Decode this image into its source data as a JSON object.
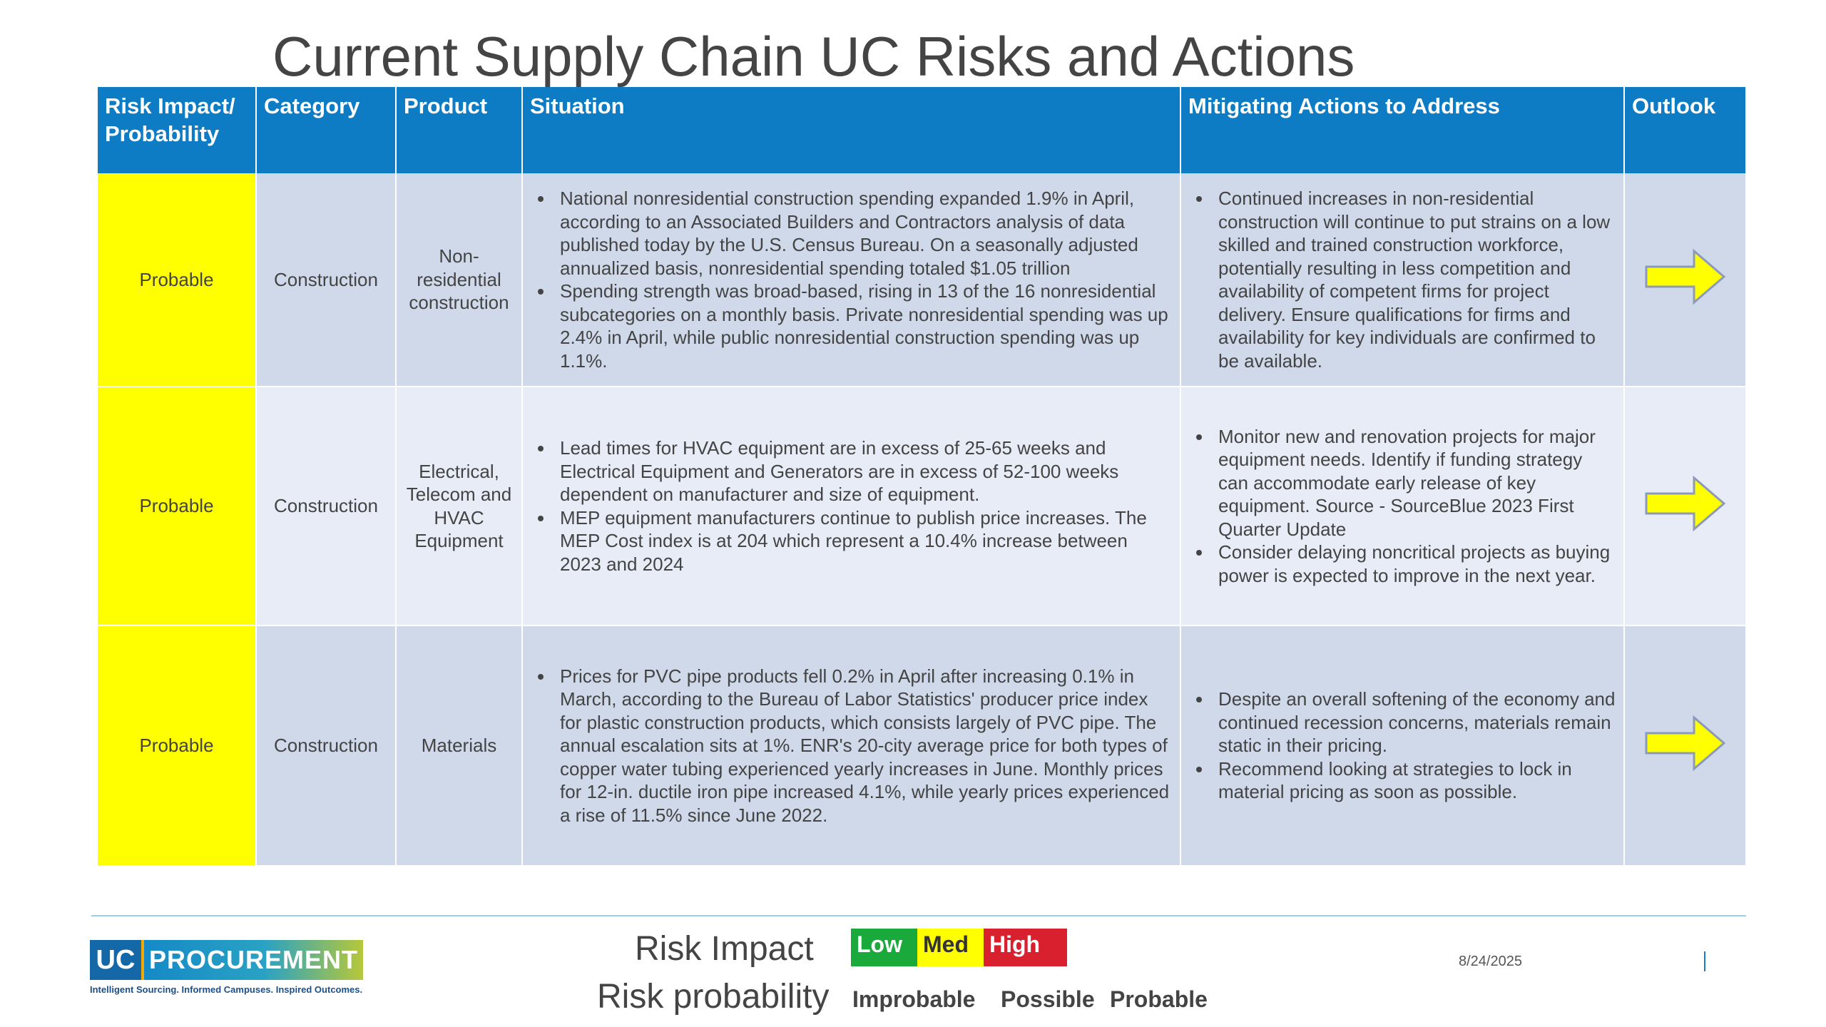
{
  "title": "Current Supply Chain UC Risks and Actions",
  "table": {
    "headers": [
      "Risk Impact/ Probability",
      "Category",
      "Product",
      "Situation",
      "Mitigating Actions to Address",
      "Outlook"
    ],
    "rows": [
      {
        "probability": "Probable",
        "category": "Construction",
        "product": "Non-residential construction",
        "situation": [
          "National nonresidential construction spending expanded 1.9% in April, according to an Associated Builders and Contractors analysis of data published today by the U.S. Census Bureau. On a seasonally adjusted annualized basis, nonresidential spending totaled $1.05 trillion",
          "Spending strength was broad-based, rising in 13 of the 16 nonresidential subcategories on a monthly basis. Private nonresidential spending was up 2.4% in April, while public nonresidential construction spending was up 1.1%."
        ],
        "actions": [
          "Continued increases in non-residential construction will continue to put strains on a low skilled and trained construction workforce, potentially resulting in less competition and availability of competent firms for project delivery. Ensure qualifications for firms and availability for key individuals are confirmed to be available."
        ],
        "outlook_icon": "yellow-right-arrow-icon",
        "impact_color": "#ffff00"
      },
      {
        "probability": "Probable",
        "category": "Construction",
        "product": "Electrical, Telecom and HVAC Equipment",
        "situation": [
          "Lead times for HVAC equipment are in excess of 25-65 weeks and Electrical Equipment and Generators are in excess of 52-100 weeks dependent on manufacturer and size of equipment.",
          "MEP equipment manufacturers continue to publish price increases. The MEP Cost index is at 204 which represent a 10.4% increase between 2023 and 2024"
        ],
        "actions": [
          "Monitor new and renovation projects for major equipment needs. Identify if funding strategy can accommodate early release of key equipment. Source - SourceBlue 2023 First Quarter Update",
          "Consider delaying noncritical projects as buying power is expected to improve in the next year."
        ],
        "outlook_icon": "yellow-right-arrow-icon",
        "impact_color": "#ffff00"
      },
      {
        "probability": "Probable",
        "category": "Construction",
        "product": "Materials",
        "situation": [
          "Prices for PVC pipe products fell 0.2% in April after increasing 0.1% in March, according to the Bureau of Labor Statistics' producer price index for plastic construction products, which consists largely of PVC pipe. The annual escalation sits at 1%. ENR's 20-city average price for both types of copper water tubing experienced yearly increases in June. Monthly prices for 12-in. ductile iron pipe increased 4.1%, while yearly prices experienced a rise of 11.5% since June 2022."
        ],
        "actions": [
          "Despite an overall softening of the economy and continued recession concerns, materials remain static in their pricing.",
          "Recommend looking at strategies to lock in material pricing as soon as possible."
        ],
        "outlook_icon": "yellow-right-arrow-icon",
        "impact_color": "#ffff00"
      }
    ]
  },
  "footer": {
    "logo": {
      "uc": "UC",
      "procurement": "PROCUREMENT",
      "tagline": "Intelligent Sourcing. Informed Campuses. Inspired Outcomes."
    },
    "risk_impact_label": "Risk Impact",
    "risk_probability_label": "Risk probability",
    "impact_levels": [
      {
        "label": "Low",
        "color": "#1aaa3c"
      },
      {
        "label": "Med",
        "color": "#ffff00"
      },
      {
        "label": "High",
        "color": "#d8202e"
      }
    ],
    "probability_levels": [
      "Improbable",
      "Possible",
      "Probable"
    ],
    "date": "8/24/2025"
  },
  "colors": {
    "header_blue": "#0e7cc4",
    "row_dark": "#cfd9ea",
    "row_light": "#e8ecf6",
    "arrow_yellow": "#ffff00"
  }
}
